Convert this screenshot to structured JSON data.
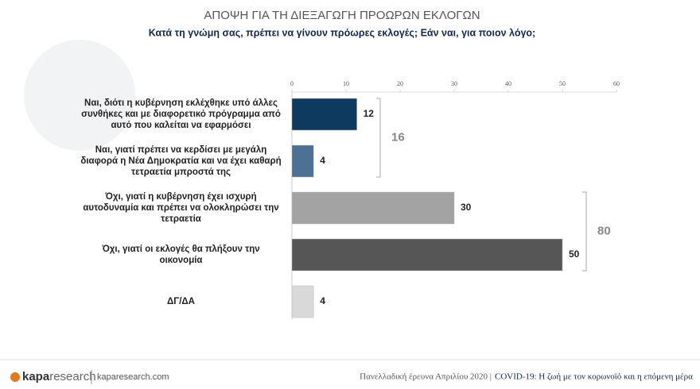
{
  "chart_data": {
    "type": "bar",
    "orientation": "horizontal",
    "title": "ΑΠΟΨΗ ΓΙΑ ΤΗ ΔΙΕΞΑΓΩΓΗ ΠΡΟΩΡΩΝ ΕΚΛΟΓΩΝ",
    "subtitle": "Κατά τη γνώμη σας, πρέπει να γίνουν πρόωρες εκλογές; Εάν ναι, για ποιον λόγο;",
    "categories": [
      "Ναι, διότι η κυβέρνηση εκλέχθηκε υπό άλλες συνθήκες και με διαφορετικό πρόγραμμα από αυτό που καλείται να εφαρμόσει",
      "Ναι, γιατί πρέπει να κερδίσει με μεγάλη διαφορά η Νέα Δημοκρατία και να έχει καθαρή τετραετία μπροστά της",
      "Όχι, γιατί η κυβέρνηση έχει ισχυρή αυτοδυναμία και πρέπει να ολοκληρώσει την τετραετία",
      "Όχι, γιατί οι εκλογές θα πλήξουν την οικονομία",
      "ΔΓ/ΔΑ"
    ],
    "values": [
      12,
      4,
      30,
      50,
      4
    ],
    "colors": [
      "#0f3a60",
      "#4d7192",
      "#a3a3a3",
      "#565656",
      "#d9d9d9"
    ],
    "xlim": [
      0,
      60
    ],
    "xticks": [
      0,
      10,
      20,
      30,
      40,
      50,
      60
    ],
    "group_totals": [
      16,
      80
    ]
  },
  "footer": {
    "logo_a": "kapa",
    "logo_b": "research",
    "site": "kaparesearch.com",
    "survey": "Πανελλαδική έρευνα Απριλίου 2020 |",
    "study": "COVID-19: Η ζωή με τον κορωνοϊό και η επόμενη μέρα"
  }
}
